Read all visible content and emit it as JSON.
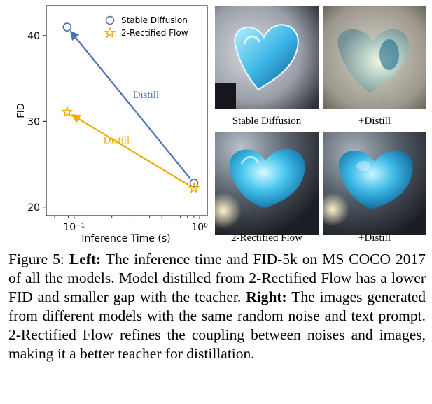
{
  "chart_data": {
    "type": "scatter",
    "xlabel": "Inference Time (s)",
    "ylabel": "FID",
    "xscale": "log",
    "xlim": [
      0.06,
      1.15
    ],
    "ylim": [
      19,
      43.5
    ],
    "yticks": [
      20,
      30,
      40
    ],
    "xticks": [
      {
        "value": 0.1,
        "label": "10⁻¹"
      },
      {
        "value": 1,
        "label": "10⁰"
      }
    ],
    "legend_position": "top-right",
    "series": [
      {
        "name": "Stable Diffusion",
        "marker": "circle",
        "color": "#4c72b0",
        "points": [
          {
            "x": 0.088,
            "y": 41.0
          },
          {
            "x": 0.9,
            "y": 22.8
          }
        ]
      },
      {
        "name": "2-Rectified Flow",
        "marker": "star",
        "color": "#f2a900",
        "points": [
          {
            "x": 0.088,
            "y": 31.1
          },
          {
            "x": 0.9,
            "y": 22.2
          }
        ]
      }
    ],
    "annotations": [
      {
        "text": "Distill",
        "series": 0,
        "color": "#4c72b0"
      },
      {
        "text": "Distill",
        "series": 1,
        "color": "#f2a900"
      }
    ]
  },
  "images": {
    "labels": [
      "Stable Diffusion",
      "+Distill",
      "2-Rectified Flow",
      "+Distill"
    ]
  },
  "caption": {
    "figure_label": "Figure 5:",
    "left_label": "Left:",
    "left_text": "The inference time and FID-5k on MS COCO 2017 of all the models. Model distilled from 2-Rectified Flow has a lower FID and smaller gap with the teacher.",
    "right_label": "Right:",
    "right_text": "The images generated from different models with the same random noise and text prompt. 2-Rectified Flow refines the coupling between noises and images, making it a better teacher for distillation."
  }
}
